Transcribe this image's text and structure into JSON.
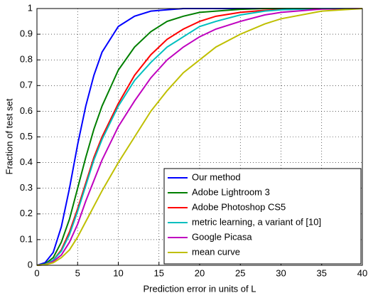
{
  "chart_data": {
    "type": "line",
    "xlabel": "Prediction error in units of L",
    "ylabel": "Fraction of test set",
    "x": [
      0,
      1,
      2,
      3,
      4,
      5,
      6,
      7,
      8,
      10,
      12,
      14,
      16,
      18,
      20,
      22,
      25,
      28,
      30,
      35,
      40
    ],
    "series": [
      {
        "name": "Our method",
        "color": "#0000ff",
        "values": [
          0,
          0.01,
          0.05,
          0.15,
          0.3,
          0.47,
          0.62,
          0.74,
          0.83,
          0.93,
          0.97,
          0.99,
          0.995,
          1,
          1,
          1,
          1,
          1,
          1,
          1,
          1
        ]
      },
      {
        "name": "Adobe Lightroom 3",
        "color": "#007f00",
        "values": [
          0,
          0.005,
          0.03,
          0.09,
          0.18,
          0.3,
          0.42,
          0.53,
          0.62,
          0.76,
          0.85,
          0.91,
          0.95,
          0.97,
          0.985,
          0.99,
          0.997,
          1,
          1,
          1,
          1
        ]
      },
      {
        "name": "Adobe Photoshop CS5",
        "color": "#ff0000",
        "values": [
          0,
          0.003,
          0.02,
          0.06,
          0.13,
          0.22,
          0.32,
          0.42,
          0.5,
          0.63,
          0.74,
          0.82,
          0.88,
          0.92,
          0.95,
          0.97,
          0.985,
          0.993,
          0.996,
          1,
          1
        ]
      },
      {
        "name": "metric learning, a variant of [10]",
        "color": "#00bfbf",
        "values": [
          0,
          0.003,
          0.02,
          0.055,
          0.12,
          0.21,
          0.31,
          0.41,
          0.49,
          0.62,
          0.72,
          0.79,
          0.85,
          0.89,
          0.93,
          0.95,
          0.975,
          0.99,
          0.995,
          1,
          1
        ]
      },
      {
        "name": "Google Picasa",
        "color": "#bf00bf",
        "values": [
          0,
          0.002,
          0.015,
          0.04,
          0.09,
          0.16,
          0.25,
          0.33,
          0.41,
          0.54,
          0.64,
          0.73,
          0.8,
          0.85,
          0.89,
          0.92,
          0.95,
          0.975,
          0.985,
          0.998,
          1
        ]
      },
      {
        "name": "mean curve",
        "color": "#bfbf00",
        "values": [
          0,
          0.002,
          0.01,
          0.03,
          0.06,
          0.11,
          0.17,
          0.23,
          0.29,
          0.4,
          0.5,
          0.6,
          0.68,
          0.75,
          0.8,
          0.85,
          0.9,
          0.94,
          0.96,
          0.99,
          1
        ]
      }
    ],
    "xlim": [
      0,
      40
    ],
    "xticks": [
      0,
      5,
      10,
      15,
      20,
      25,
      30,
      35,
      40
    ],
    "ylim": [
      0,
      1
    ],
    "yticks": [
      0,
      0.1,
      0.2,
      0.3,
      0.4,
      0.5,
      0.6,
      0.7,
      0.8,
      0.9,
      1
    ],
    "grid": true,
    "legend": "lower right"
  }
}
